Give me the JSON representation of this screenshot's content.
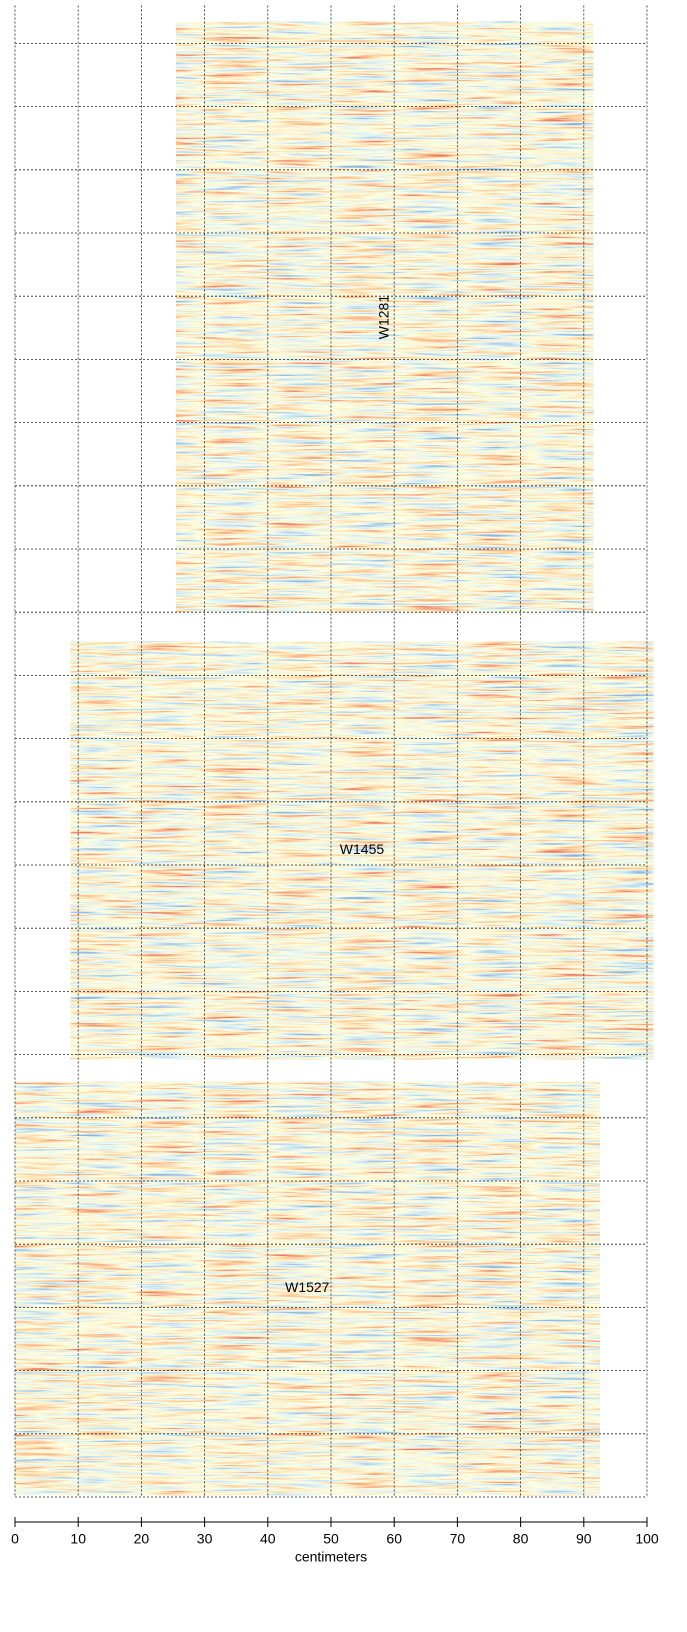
{
  "chart_data": {
    "type": "heatmap-panels",
    "xlabel": "centimeters",
    "xlim": [
      0,
      100
    ],
    "xticks": [
      0,
      10,
      20,
      30,
      40,
      50,
      60,
      70,
      80,
      90,
      100
    ],
    "ylim": [
      0,
      236
    ],
    "yticks": [
      0,
      10,
      20,
      30,
      40,
      50,
      60,
      70,
      80,
      90,
      100,
      110,
      120,
      130,
      140,
      150,
      160,
      170,
      180,
      190,
      200,
      210,
      220,
      230
    ],
    "grid": true,
    "panels": [
      {
        "name": "W1281",
        "xrange": [
          25.5,
          91.5
        ],
        "yrange": [
          140,
          233.4
        ],
        "label_rotated": true
      },
      {
        "name": "W1455",
        "xrange": [
          8.8,
          101
        ],
        "yrange": [
          69.3,
          135.3
        ],
        "label_rotated": false
      },
      {
        "name": "W1527",
        "xrange": [
          0,
          92.5
        ],
        "yrange": [
          0.3,
          65.7
        ],
        "label_rotated": false
      }
    ]
  }
}
